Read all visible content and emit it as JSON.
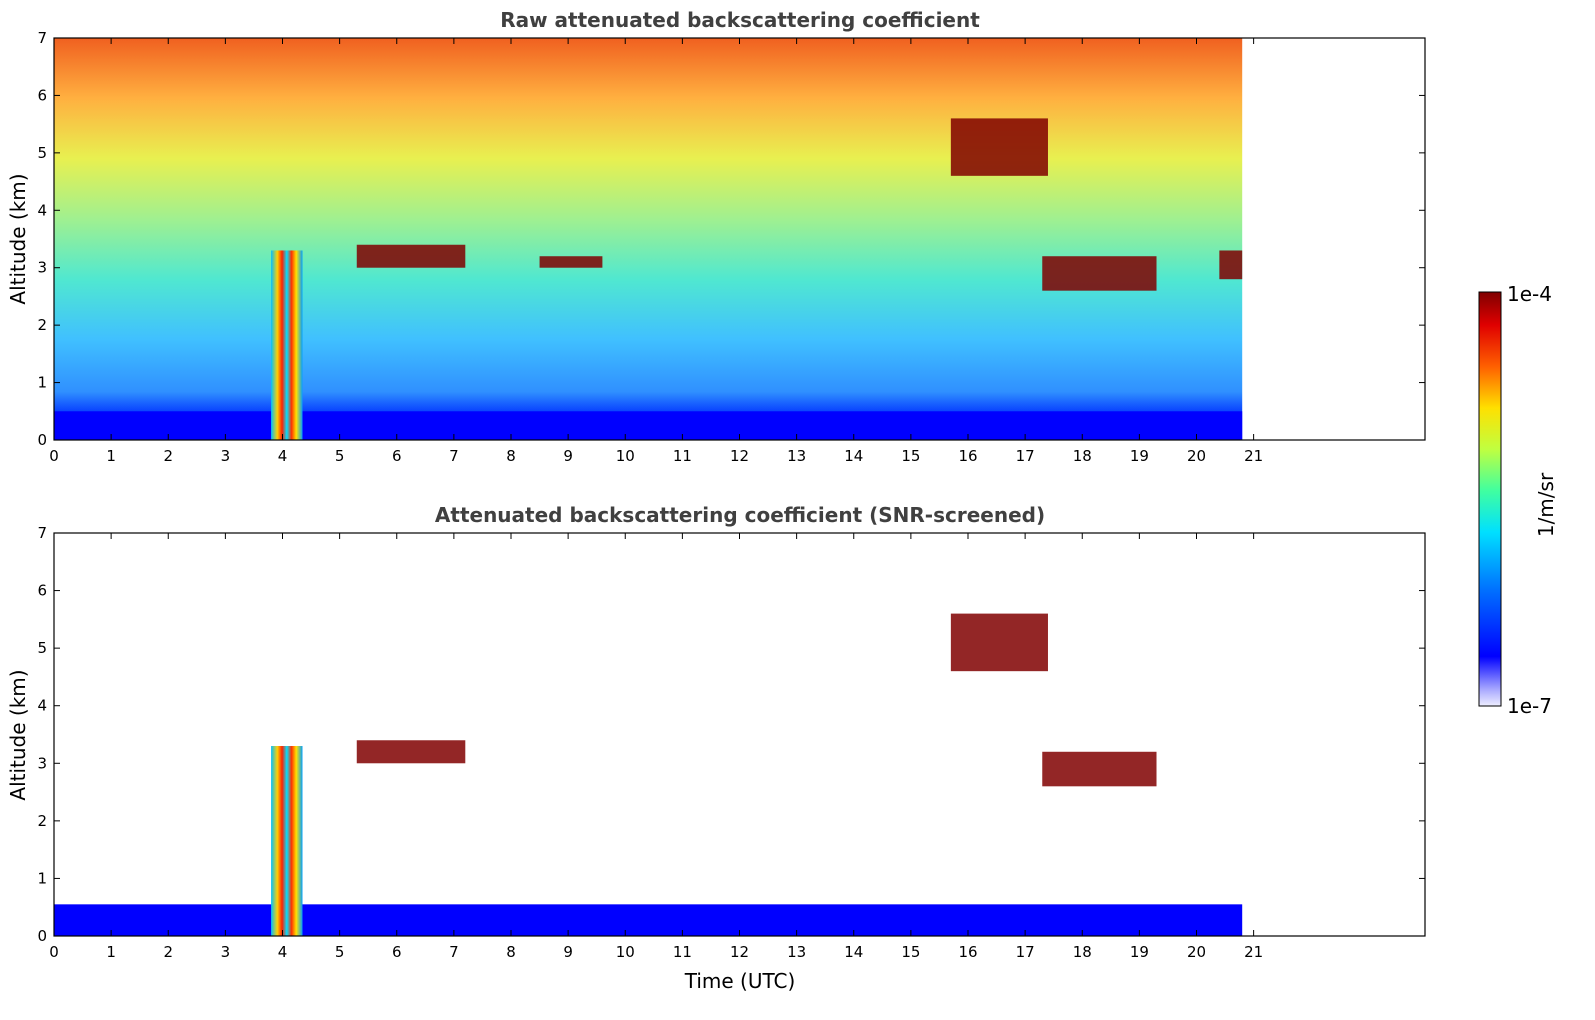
{
  "chart_data": [
    {
      "type": "heatmap",
      "title": "Raw attenuated backscattering coefficient",
      "xlabel": "",
      "ylabel": "Altitude (km)",
      "xlim": [
        0,
        24
      ],
      "ylim": [
        0,
        7
      ],
      "xticks": [
        0,
        1,
        2,
        3,
        4,
        5,
        6,
        7,
        8,
        9,
        10,
        11,
        12,
        13,
        14,
        15,
        16,
        17,
        18,
        19,
        20,
        21
      ],
      "yticks": [
        0,
        1,
        2,
        3,
        4,
        5,
        6,
        7
      ],
      "data_end_time": 20.8,
      "features": [
        {
          "kind": "aerosol_layer",
          "x": [
            0,
            20.8
          ],
          "y": [
            0,
            0.5
          ],
          "level": "low"
        },
        {
          "kind": "rain_shaft",
          "x": [
            3.8,
            4.35
          ],
          "y": [
            0,
            3.3
          ],
          "level": "high"
        },
        {
          "kind": "cloud",
          "x": [
            5.3,
            7.2
          ],
          "y": [
            3.0,
            3.4
          ],
          "level": "max"
        },
        {
          "kind": "cloud",
          "x": [
            8.5,
            9.6
          ],
          "y": [
            3.0,
            3.2
          ],
          "level": "max"
        },
        {
          "kind": "cloud",
          "x": [
            15.7,
            17.4
          ],
          "y": [
            4.6,
            5.6
          ],
          "level": "max"
        },
        {
          "kind": "cloud",
          "x": [
            17.3,
            19.3
          ],
          "y": [
            2.6,
            3.2
          ],
          "level": "max"
        },
        {
          "kind": "cloud",
          "x": [
            20.4,
            20.8
          ],
          "y": [
            2.8,
            3.3
          ],
          "level": "max"
        }
      ]
    },
    {
      "type": "heatmap",
      "title": "Attenuated backscattering coefficient (SNR-screened)",
      "xlabel": "Time (UTC)",
      "ylabel": "Altitude (km)",
      "xlim": [
        0,
        24
      ],
      "ylim": [
        0,
        7
      ],
      "xticks": [
        0,
        1,
        2,
        3,
        4,
        5,
        6,
        7,
        8,
        9,
        10,
        11,
        12,
        13,
        14,
        15,
        16,
        17,
        18,
        19,
        20,
        21
      ],
      "yticks": [
        0,
        1,
        2,
        3,
        4,
        5,
        6,
        7
      ],
      "data_end_time": 20.8,
      "features": [
        {
          "kind": "aerosol_layer",
          "x": [
            0,
            20.8
          ],
          "y": [
            0,
            0.55
          ],
          "level": "low"
        },
        {
          "kind": "rain_shaft",
          "x": [
            3.8,
            4.35
          ],
          "y": [
            0,
            3.3
          ],
          "level": "high"
        },
        {
          "kind": "cloud",
          "x": [
            5.3,
            7.2
          ],
          "y": [
            3.0,
            3.4
          ],
          "level": "max"
        },
        {
          "kind": "cloud",
          "x": [
            15.7,
            17.4
          ],
          "y": [
            4.6,
            5.6
          ],
          "level": "max"
        },
        {
          "kind": "cloud",
          "x": [
            17.3,
            19.3
          ],
          "y": [
            2.6,
            3.2
          ],
          "level": "max"
        }
      ]
    }
  ],
  "colorbar": {
    "label": "1/m/sr",
    "max_label": "1e-4",
    "min_label": "1e-7",
    "colormap": [
      "#ffffff",
      "#c8c8ff",
      "#0000ff",
      "#0080ff",
      "#00ffff",
      "#80ff80",
      "#ffff00",
      "#ff8000",
      "#ff0000",
      "#800000"
    ]
  }
}
